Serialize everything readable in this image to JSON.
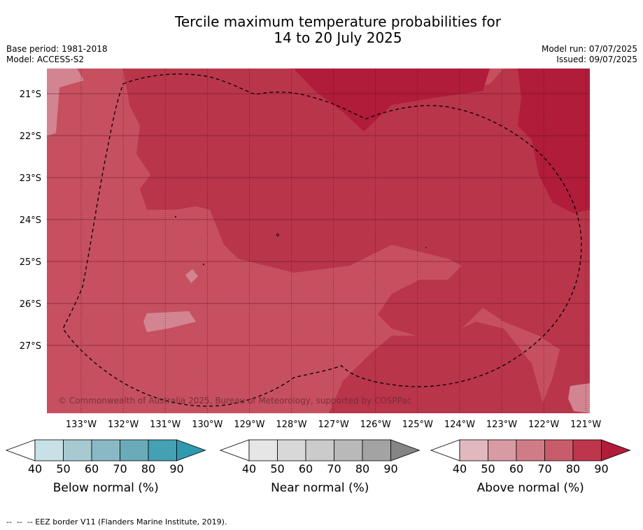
{
  "header": {
    "title_line1": "Tercile maximum temperature probabilities for",
    "title_line2": "14 to 20 July 2025",
    "base_period": "Base period: 1981-2018",
    "model": "Model: ACCESS-S2",
    "model_run": "Model run: 07/07/2025",
    "issued": "Issued: 09/07/2025"
  },
  "map": {
    "lat_labels": [
      "21°S",
      "22°S",
      "23°S",
      "24°S",
      "25°S",
      "26°S",
      "27°S"
    ],
    "lon_labels": [
      "133°W",
      "132°W",
      "131°W",
      "130°W",
      "129°W",
      "128°W",
      "127°W",
      "126°W",
      "125°W",
      "124°W",
      "123°W",
      "122°W",
      "121°W"
    ],
    "copyright": "© Commonwealth of Australia 2025, Bureau of Meteorology, supported by COSPPac",
    "colors": {
      "above_60_70": "#d28590",
      "above_70_80": "#c6505f",
      "above_80_90": "#b9354a",
      "above_90": "#b01c3a"
    }
  },
  "colorbars": [
    {
      "title": "Below normal (%)",
      "ticks": [
        "40",
        "50",
        "60",
        "70",
        "80",
        "90"
      ],
      "colors": [
        "#c7e1e6",
        "#a7cad1",
        "#89b9c5",
        "#6aaab9",
        "#44a1b3",
        "#2e99b0"
      ]
    },
    {
      "title": "Near normal (%)",
      "ticks": [
        "40",
        "50",
        "60",
        "70",
        "80",
        "90"
      ],
      "colors": [
        "#e6e6e6",
        "#d8d8d8",
        "#cbcbcb",
        "#b9b9b9",
        "#a3a3a3",
        "#858585"
      ]
    },
    {
      "title": "Above normal (%)",
      "ticks": [
        "40",
        "50",
        "60",
        "70",
        "80",
        "90"
      ],
      "colors": [
        "#e2b8bf",
        "#d89aa3",
        "#d07c87",
        "#c85c6b",
        "#bd364b",
        "#b01c3a"
      ]
    }
  ],
  "footer": {
    "text": "--  --  -- EEZ border V11 (Flanders Marine Institute, 2019)."
  }
}
